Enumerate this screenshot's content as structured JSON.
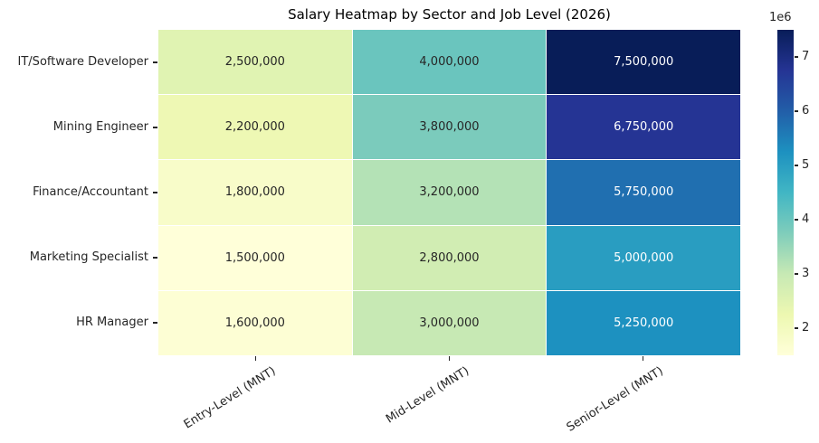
{
  "chart_data": {
    "type": "heatmap",
    "title": "Salary Heatmap by Sector and Job Level (2026)",
    "rows": [
      "IT/Software Developer",
      "Mining Engineer",
      "Finance/Accountant",
      "Marketing Specialist",
      "HR Manager"
    ],
    "columns": [
      "Entry-Level (MNT)",
      "Mid-Level (MNT)",
      "Senior-Level (MNT)"
    ],
    "values": [
      [
        2500000,
        4000000,
        7500000
      ],
      [
        2200000,
        3800000,
        6750000
      ],
      [
        1800000,
        3200000,
        5750000
      ],
      [
        1500000,
        2800000,
        5000000
      ],
      [
        1600000,
        3000000,
        5250000
      ]
    ],
    "cell_labels": [
      [
        "2,500,000",
        "4,000,000",
        "7,500,000"
      ],
      [
        "2,200,000",
        "3,800,000",
        "6,750,000"
      ],
      [
        "1,800,000",
        "3,200,000",
        "5,750,000"
      ],
      [
        "1,500,000",
        "2,800,000",
        "5,000,000"
      ],
      [
        "1,600,000",
        "3,000,000",
        "5,250,000"
      ]
    ],
    "cell_colors": [
      [
        "#e0f3b2",
        "#6ac5be",
        "#081d58"
      ],
      [
        "#eef8b4",
        "#7bcbbc",
        "#253494"
      ],
      [
        "#f8fcc9",
        "#b4e2b6",
        "#206fb0"
      ],
      [
        "#ffffd9",
        "#d1edb3",
        "#299dc1"
      ],
      [
        "#fdfed4",
        "#c7e9b4",
        "#1d91c0"
      ]
    ],
    "cell_text_colors": [
      [
        "#262626",
        "#262626",
        "#ffffff"
      ],
      [
        "#262626",
        "#262626",
        "#ffffff"
      ],
      [
        "#262626",
        "#262626",
        "#ffffff"
      ],
      [
        "#262626",
        "#262626",
        "#ffffff"
      ],
      [
        "#262626",
        "#262626",
        "#ffffff"
      ]
    ],
    "colormap": "YlGnBu",
    "vmin": 1500000,
    "vmax": 7500000,
    "grid_line_color": "#ffffff",
    "colorbar": {
      "offset_label": "1e6",
      "ticks": [
        2,
        3,
        4,
        5,
        6,
        7
      ],
      "gradient_stops": [
        "#ffffd9",
        "#edf8b1",
        "#c7e9b4",
        "#7fcdbb",
        "#41b6c4",
        "#1d91c0",
        "#225ea8",
        "#253494",
        "#081d58"
      ]
    }
  }
}
